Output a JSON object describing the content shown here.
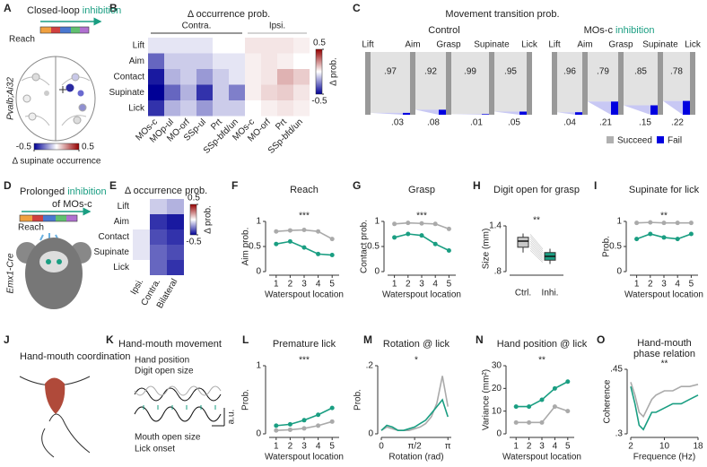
{
  "letters": [
    "A",
    "B",
    "C",
    "D",
    "E",
    "F",
    "G",
    "H",
    "I",
    "J",
    "K",
    "L",
    "M",
    "N",
    "O"
  ],
  "A": {
    "title": [
      "Closed-loop ",
      "inhibition"
    ],
    "reach": "Reach",
    "strain": "Pvalb;Ai32",
    "clim": [
      -0.5,
      0.5
    ],
    "cbar_ticks": [
      -0.5,
      0.5
    ],
    "cbar_label": "Δ supinate occurrence"
  },
  "B": {
    "title": "Δ occurrence prob.",
    "groups": [
      "Contra.",
      "Ipsi."
    ],
    "rows": [
      "Lift",
      "Aim",
      "Contact",
      "Supinate",
      "Lick"
    ],
    "columns": [
      "MOs-c",
      "MOp-ul",
      "MO-orf",
      "SSp-ul",
      "Prt",
      "SSp-bfd/un",
      "MOs-c",
      "MO-orf",
      "Prt",
      "SSp-bfd/un"
    ],
    "values": [
      [
        -0.05,
        -0.05,
        -0.05,
        -0.05,
        0.0,
        0.0,
        0.05,
        0.05,
        0.05,
        0.03
      ],
      [
        -0.3,
        -0.1,
        -0.1,
        -0.1,
        -0.05,
        -0.05,
        0.03,
        0.05,
        0.03,
        0.0
      ],
      [
        -0.45,
        -0.15,
        -0.1,
        -0.2,
        -0.1,
        -0.05,
        0.03,
        0.05,
        0.15,
        0.1
      ],
      [
        -0.5,
        -0.3,
        -0.15,
        -0.4,
        -0.1,
        -0.25,
        0.03,
        0.08,
        0.1,
        0.05
      ],
      [
        -0.4,
        -0.15,
        -0.1,
        -0.2,
        -0.1,
        -0.1,
        0.0,
        0.03,
        0.05,
        0.03
      ]
    ],
    "clim": [
      -0.5,
      0.5
    ],
    "cbar_ticks": [
      0.5,
      -0.5
    ],
    "cbar_label": "Δ prob."
  },
  "C": {
    "title": "Movement transition prob.",
    "stages": [
      "Lift",
      "Aim",
      "Grasp",
      "Supinate",
      "Lick"
    ],
    "groups": [
      {
        "name": [
          "Control"
        ],
        "succeed": [
          0.97,
          0.92,
          0.99,
          0.95
        ],
        "succeed_labels": [
          ".97",
          ".92",
          ".99",
          ".95"
        ],
        "fail": [
          0.03,
          0.08,
          0.01,
          0.05
        ],
        "fail_labels": [
          ".03",
          ".08",
          ".01",
          ".05"
        ]
      },
      {
        "name": [
          "MOs-c ",
          "inhibition"
        ],
        "succeed": [
          0.96,
          0.79,
          0.85,
          0.78
        ],
        "succeed_labels": [
          ".96",
          ".79",
          ".85",
          ".78"
        ],
        "fail": [
          0.04,
          0.21,
          0.15,
          0.22
        ],
        "fail_labels": [
          ".04",
          ".21",
          ".15",
          ".22"
        ]
      }
    ],
    "legend": [
      "Succeed",
      "Fail"
    ],
    "colors": [
      "#b0b0b0",
      "#0000e0"
    ]
  },
  "D": {
    "title": [
      "Prolonged ",
      "inhibition"
    ],
    "title2": "of MOs-c",
    "reach": "Reach",
    "strain": "Emx1-Cre"
  },
  "E": {
    "title": "Δ occurrence prob.",
    "rows": [
      "Lift",
      "Aim",
      "Contact",
      "Supinate",
      "Lick"
    ],
    "columns": [
      "Ipsi.",
      "Contra.",
      "Bilateral"
    ],
    "values": [
      [
        0.0,
        -0.1,
        -0.15
      ],
      [
        0.0,
        -0.4,
        -0.45
      ],
      [
        -0.05,
        -0.35,
        -0.4
      ],
      [
        -0.05,
        -0.3,
        -0.35
      ],
      [
        0.0,
        -0.3,
        -0.4
      ]
    ],
    "clim": [
      -0.5,
      0.5
    ],
    "cbar_ticks": [
      0.5,
      -0.5
    ],
    "cbar_label": "Δ prob."
  },
  "F": {
    "type": "line",
    "title": "Reach",
    "ylabel": "Aim prob.",
    "xlabel": "Waterspout location",
    "sig": "***",
    "x": [
      1,
      2,
      3,
      4,
      5
    ],
    "xlim": [
      0.5,
      5.5
    ],
    "xticks": [
      1,
      2,
      3,
      4,
      5
    ],
    "ylim": [
      0,
      1
    ],
    "yticks": [
      0,
      0.5,
      1
    ],
    "series": [
      {
        "color": "#aaaaaa",
        "values": [
          0.8,
          0.82,
          0.83,
          0.8,
          0.65
        ]
      },
      {
        "color": "#1a9e82",
        "values": [
          0.55,
          0.6,
          0.48,
          0.35,
          0.33
        ]
      }
    ]
  },
  "G": {
    "type": "line",
    "title": "Grasp",
    "ylabel": "Contact prob.",
    "xlabel": "Waterspout location",
    "sig": "***",
    "x": [
      1,
      2,
      3,
      4,
      5
    ],
    "xlim": [
      0.5,
      5.5
    ],
    "xticks": [
      1,
      2,
      3,
      4,
      5
    ],
    "ylim": [
      0,
      1
    ],
    "yticks": [
      0,
      0.5,
      1
    ],
    "series": [
      {
        "color": "#aaaaaa",
        "values": [
          0.95,
          0.97,
          0.96,
          0.95,
          0.85
        ]
      },
      {
        "color": "#1a9e82",
        "values": [
          0.68,
          0.75,
          0.72,
          0.55,
          0.42
        ]
      }
    ]
  },
  "H": {
    "type": "box",
    "title": "Digit open for grasp",
    "ylabel": "Size (mm)",
    "sig": "**",
    "categories": [
      "Ctrl.",
      "Inhi."
    ],
    "ylim": [
      0.8,
      1.4
    ],
    "yticks": [
      {
        "value": 0.8,
        "label": ".8"
      },
      1.4
    ],
    "boxes": [
      {
        "color": "#c8c8c8",
        "whislo": 1.05,
        "q1": 1.12,
        "med": 1.2,
        "q3": 1.25,
        "whishi": 1.3
      },
      {
        "color": "#1a9e82",
        "whislo": 0.9,
        "q1": 0.95,
        "med": 1.0,
        "q3": 1.05,
        "whishi": 1.1
      }
    ]
  },
  "I": {
    "type": "line",
    "title": "Supinate for lick",
    "ylabel": "Prob.",
    "xlabel": "Waterspout location",
    "sig": "**",
    "x": [
      1,
      2,
      3,
      4,
      5
    ],
    "xlim": [
      0.5,
      5.5
    ],
    "xticks": [
      1,
      2,
      3,
      4,
      5
    ],
    "ylim": [
      0,
      1
    ],
    "yticks": [
      0,
      0.5,
      1
    ],
    "series": [
      {
        "color": "#aaaaaa",
        "values": [
          0.97,
          0.98,
          0.97,
          0.97,
          0.97
        ]
      },
      {
        "color": "#1a9e82",
        "values": [
          0.65,
          0.75,
          0.68,
          0.65,
          0.75
        ]
      }
    ]
  },
  "J": {
    "title": "Hand-mouth coordination"
  },
  "K": {
    "title": "Hand-mouth movement",
    "traces": [
      "Hand position",
      "Digit open size",
      "Mouth open size",
      "Lick onset"
    ],
    "unit": "a.u."
  },
  "L": {
    "type": "line",
    "title": "Premature lick",
    "ylabel": "Prob.",
    "xlabel": "Waterspout location",
    "sig": "***",
    "x": [
      1,
      2,
      3,
      4,
      5
    ],
    "xlim": [
      0.5,
      5.5
    ],
    "xticks": [
      1,
      2,
      3,
      4,
      5
    ],
    "ylim": [
      0,
      1
    ],
    "yticks": [
      0,
      1
    ],
    "series": [
      {
        "color": "#aaaaaa",
        "values": [
          0.05,
          0.06,
          0.08,
          0.12,
          0.18
        ]
      },
      {
        "color": "#1a9e82",
        "values": [
          0.12,
          0.14,
          0.2,
          0.28,
          0.38
        ]
      }
    ]
  },
  "M": {
    "type": "line",
    "title": "Rotation @ lick",
    "ylabel": "Prob.",
    "xlabel": "Rotation (rad)",
    "sig": "*",
    "x": [
      0,
      0.26,
      0.52,
      0.79,
      1.05,
      1.31,
      1.57,
      1.83,
      2.09,
      2.36,
      2.62,
      2.88,
      3.14
    ],
    "xlim": [
      0,
      3.3
    ],
    "xticks": [
      0,
      {
        "value": 1.5708,
        "label": "π/2"
      },
      {
        "value": 3.1416,
        "label": "π"
      }
    ],
    "ylim": [
      0,
      0.2
    ],
    "yticks": [
      0,
      {
        "value": 0.2,
        "label": ".2"
      }
    ],
    "series": [
      {
        "color": "#aaaaaa",
        "values": [
          0.01,
          0.02,
          0.015,
          0.01,
          0.01,
          0.01,
          0.015,
          0.02,
          0.03,
          0.05,
          0.09,
          0.17,
          0.08
        ]
      },
      {
        "color": "#1a9e82",
        "values": [
          0.01,
          0.025,
          0.02,
          0.01,
          0.01,
          0.015,
          0.02,
          0.03,
          0.04,
          0.06,
          0.08,
          0.1,
          0.05
        ]
      }
    ]
  },
  "N": {
    "type": "line",
    "title": "Hand position @ lick",
    "ylabel": "Variance (mm²)",
    "xlabel": "Waterspout location",
    "sig": "**",
    "x": [
      1,
      2,
      3,
      4,
      5
    ],
    "xlim": [
      0.5,
      5.5
    ],
    "xticks": [
      1,
      2,
      3,
      4,
      5
    ],
    "ylim": [
      0,
      30
    ],
    "yticks": [
      0,
      10,
      20,
      30
    ],
    "series": [
      {
        "color": "#aaaaaa",
        "values": [
          5,
          5,
          5,
          12,
          10
        ]
      },
      {
        "color": "#1a9e82",
        "values": [
          12,
          12,
          15,
          20,
          23
        ]
      }
    ]
  },
  "O": {
    "type": "line",
    "title": [
      "Hand-mouth",
      "phase relation"
    ],
    "ylabel": "Coherence",
    "xlabel": "Frequence (Hz)",
    "sig": "**",
    "x": [
      2,
      3,
      4,
      5,
      6,
      7,
      8,
      10,
      12,
      14,
      16,
      18
    ],
    "xlim": [
      2,
      18
    ],
    "xticks": [
      2,
      10,
      18
    ],
    "ylim": [
      0.3,
      0.45
    ],
    "yticks": [
      {
        "value": 0.3,
        "label": ".3"
      },
      {
        "value": 0.45,
        "label": ".45"
      }
    ],
    "series": [
      {
        "color": "#aaaaaa",
        "values": [
          0.42,
          0.39,
          0.35,
          0.34,
          0.36,
          0.38,
          0.39,
          0.4,
          0.4,
          0.41,
          0.41,
          0.415
        ]
      },
      {
        "color": "#1a9e82",
        "values": [
          0.41,
          0.37,
          0.32,
          0.31,
          0.33,
          0.35,
          0.35,
          0.36,
          0.37,
          0.37,
          0.38,
          0.39
        ]
      }
    ]
  }
}
